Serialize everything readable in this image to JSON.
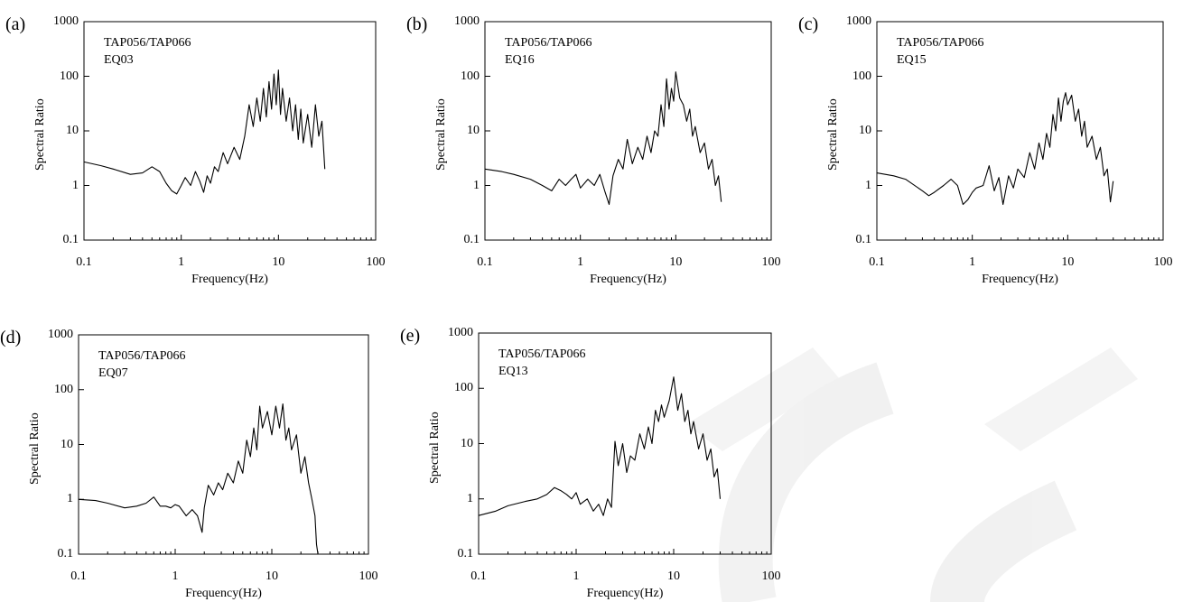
{
  "chart_data": [
    {
      "panel_label": "(a)",
      "type": "line",
      "annotation": [
        "TAP056/TAP066",
        "EQ03"
      ],
      "xlabel": "Frequency(Hz)",
      "ylabel": "Spectral Ratio",
      "xscale": "log",
      "yscale": "log",
      "xlim": [
        0.1,
        100
      ],
      "ylim": [
        0.1,
        1000
      ],
      "xtick_labels": [
        "0.1",
        "1",
        "10",
        "100"
      ],
      "ytick_labels": [
        "0.1",
        "1",
        "10",
        "100",
        "1000"
      ],
      "grid": false,
      "x": [
        0.1,
        0.15,
        0.2,
        0.3,
        0.4,
        0.5,
        0.6,
        0.7,
        0.8,
        0.9,
        1.0,
        1.1,
        1.25,
        1.4,
        1.55,
        1.7,
        1.85,
        2.0,
        2.2,
        2.4,
        2.7,
        3.0,
        3.5,
        4.0,
        4.5,
        5.0,
        5.5,
        6.0,
        6.5,
        7.0,
        7.5,
        8.0,
        8.5,
        9.0,
        9.5,
        10.0,
        10.5,
        11.0,
        12.0,
        13.0,
        14.0,
        15.0,
        16.0,
        17.0,
        18.0,
        20.0,
        22.0,
        24.0,
        26.0,
        28.0,
        30.0
      ],
      "y": [
        2.7,
        2.3,
        2.0,
        1.6,
        1.7,
        2.2,
        1.8,
        1.1,
        0.8,
        0.7,
        1.0,
        1.4,
        1.0,
        1.8,
        1.2,
        0.75,
        1.5,
        1.1,
        2.2,
        1.8,
        4.0,
        2.5,
        5.0,
        3.0,
        8.0,
        30.0,
        12.0,
        40.0,
        15.0,
        60.0,
        18.0,
        80.0,
        25.0,
        110.0,
        30.0,
        130.0,
        20.0,
        60.0,
        15.0,
        40.0,
        10.0,
        30.0,
        7.0,
        25.0,
        6.0,
        20.0,
        5.0,
        30.0,
        8.0,
        15.0,
        2.0
      ]
    },
    {
      "panel_label": "(b)",
      "type": "line",
      "annotation": [
        "TAP056/TAP066",
        "EQ16"
      ],
      "xlabel": "Frequency(Hz)",
      "ylabel": "Spectral Ratio",
      "xscale": "log",
      "yscale": "log",
      "xlim": [
        0.1,
        100
      ],
      "ylim": [
        0.1,
        1000
      ],
      "xtick_labels": [
        "0.1",
        "1",
        "10",
        "100"
      ],
      "ytick_labels": [
        "0.1",
        "1",
        "10",
        "100",
        "1000"
      ],
      "grid": false,
      "x": [
        0.1,
        0.15,
        0.2,
        0.3,
        0.4,
        0.5,
        0.6,
        0.7,
        0.8,
        0.9,
        1.0,
        1.2,
        1.4,
        1.6,
        1.8,
        2.0,
        2.2,
        2.5,
        2.8,
        3.1,
        3.5,
        4.0,
        4.5,
        5.0,
        5.5,
        6.0,
        6.5,
        7.0,
        7.5,
        8.0,
        8.5,
        9.0,
        9.5,
        10.0,
        11.0,
        12.0,
        13.0,
        14.0,
        15.0,
        16.0,
        18.0,
        20.0,
        22.0,
        24.0,
        26.0,
        28.0,
        30.0
      ],
      "y": [
        2.0,
        1.8,
        1.6,
        1.3,
        1.0,
        0.8,
        1.3,
        1.0,
        1.3,
        1.6,
        0.9,
        1.3,
        1.0,
        1.6,
        0.8,
        0.45,
        1.5,
        3.0,
        2.0,
        7.0,
        2.5,
        5.0,
        3.0,
        8.0,
        4.0,
        10.0,
        8.0,
        30.0,
        12.0,
        90.0,
        25.0,
        60.0,
        35.0,
        120.0,
        40.0,
        30.0,
        15.0,
        25.0,
        8.0,
        12.0,
        4.0,
        6.0,
        2.0,
        3.0,
        1.0,
        1.5,
        0.5
      ]
    },
    {
      "panel_label": "(c)",
      "type": "line",
      "annotation": [
        "TAP056/TAP066",
        "EQ15"
      ],
      "xlabel": "Frequency(Hz)",
      "ylabel": "Spectral Ratio",
      "xscale": "log",
      "yscale": "log",
      "xlim": [
        0.1,
        100
      ],
      "ylim": [
        0.1,
        1000
      ],
      "xtick_labels": [
        "0.1",
        "1",
        "10",
        "100"
      ],
      "ytick_labels": [
        "0.1",
        "1",
        "10",
        "100",
        "1000"
      ],
      "grid": false,
      "x": [
        0.1,
        0.15,
        0.2,
        0.3,
        0.35,
        0.4,
        0.5,
        0.6,
        0.7,
        0.8,
        0.9,
        1.0,
        1.1,
        1.3,
        1.5,
        1.7,
        1.9,
        2.1,
        2.4,
        2.7,
        3.0,
        3.5,
        4.0,
        4.5,
        5.0,
        5.5,
        6.0,
        6.5,
        7.0,
        7.5,
        8.0,
        8.5,
        9.0,
        9.5,
        10.0,
        11.0,
        12.0,
        13.0,
        14.0,
        15.0,
        16.0,
        18.0,
        20.0,
        22.0,
        24.0,
        26.0,
        28.0,
        30.0
      ],
      "y": [
        1.7,
        1.5,
        1.3,
        0.8,
        0.65,
        0.75,
        1.0,
        1.3,
        1.0,
        0.45,
        0.55,
        0.75,
        0.9,
        1.0,
        2.3,
        0.8,
        1.4,
        0.45,
        1.5,
        0.9,
        2.0,
        1.4,
        4.0,
        2.0,
        6.0,
        3.0,
        9.0,
        5.0,
        20.0,
        10.0,
        40.0,
        15.0,
        35.0,
        50.0,
        30.0,
        45.0,
        15.0,
        25.0,
        8.0,
        15.0,
        5.0,
        8.0,
        3.0,
        5.0,
        1.5,
        2.0,
        0.5,
        1.2
      ]
    },
    {
      "panel_label": "(d)",
      "type": "line",
      "annotation": [
        "TAP056/TAP066",
        "EQ07"
      ],
      "xlabel": "Frequency(Hz)",
      "ylabel": "Spectral Ratio",
      "xscale": "log",
      "yscale": "log",
      "xlim": [
        0.1,
        100
      ],
      "ylim": [
        0.1,
        1000
      ],
      "xtick_labels": [
        "0.1",
        "1",
        "10",
        "100"
      ],
      "ytick_labels": [
        "0.1",
        "1",
        "10",
        "100",
        "1000"
      ],
      "grid": false,
      "x": [
        0.1,
        0.15,
        0.2,
        0.3,
        0.4,
        0.5,
        0.6,
        0.7,
        0.8,
        0.9,
        1.0,
        1.1,
        1.3,
        1.5,
        1.7,
        1.9,
        2.0,
        2.2,
        2.5,
        2.8,
        3.1,
        3.5,
        4.0,
        4.5,
        5.0,
        5.5,
        6.0,
        6.5,
        7.0,
        7.5,
        8.0,
        9.0,
        10.0,
        11.0,
        12.0,
        13.0,
        14.0,
        15.0,
        16.0,
        18.0,
        20.0,
        22.0,
        24.0,
        26.0,
        28.0,
        29.0,
        30.0
      ],
      "y": [
        1.0,
        0.95,
        0.85,
        0.7,
        0.75,
        0.85,
        1.1,
        0.75,
        0.75,
        0.7,
        0.8,
        0.75,
        0.5,
        0.65,
        0.5,
        0.25,
        0.7,
        1.8,
        1.2,
        2.0,
        1.5,
        3.0,
        2.0,
        5.0,
        3.0,
        12.0,
        6.0,
        20.0,
        8.0,
        50.0,
        20.0,
        40.0,
        15.0,
        50.0,
        20.0,
        55.0,
        12.0,
        20.0,
        8.0,
        15.0,
        3.0,
        6.0,
        2.0,
        1.0,
        0.5,
        0.15,
        0.1
      ]
    },
    {
      "panel_label": "(e)",
      "type": "line",
      "annotation": [
        "TAP056/TAP066",
        "EQ13"
      ],
      "xlabel": "Frequency(Hz)",
      "ylabel": "Spectral Ratio",
      "xscale": "log",
      "yscale": "log",
      "xlim": [
        0.1,
        100
      ],
      "ylim": [
        0.1,
        1000
      ],
      "xtick_labels": [
        "0.1",
        "1",
        "10",
        "100"
      ],
      "ytick_labels": [
        "0.1",
        "1",
        "10",
        "100",
        "1000"
      ],
      "grid": false,
      "x": [
        0.1,
        0.15,
        0.2,
        0.3,
        0.4,
        0.5,
        0.6,
        0.7,
        0.8,
        0.9,
        1.0,
        1.1,
        1.3,
        1.5,
        1.7,
        1.9,
        2.1,
        2.3,
        2.5,
        2.7,
        3.0,
        3.3,
        3.6,
        4.0,
        4.5,
        5.0,
        5.5,
        6.0,
        6.5,
        7.0,
        7.5,
        8.0,
        9.0,
        10.0,
        11.0,
        12.0,
        13.0,
        14.0,
        15.0,
        16.0,
        18.0,
        20.0,
        22.0,
        24.0,
        26.0,
        28.0,
        30.0
      ],
      "y": [
        0.5,
        0.6,
        0.75,
        0.9,
        1.0,
        1.2,
        1.6,
        1.4,
        1.2,
        1.0,
        1.3,
        0.8,
        1.0,
        0.6,
        0.8,
        0.5,
        1.0,
        0.7,
        11.0,
        4.0,
        10.0,
        3.0,
        6.0,
        5.0,
        15.0,
        8.0,
        20.0,
        10.0,
        40.0,
        25.0,
        50.0,
        30.0,
        60.0,
        160.0,
        40.0,
        80.0,
        25.0,
        40.0,
        15.0,
        25.0,
        8.0,
        15.0,
        5.0,
        8.0,
        2.5,
        3.5,
        1.0
      ]
    }
  ]
}
